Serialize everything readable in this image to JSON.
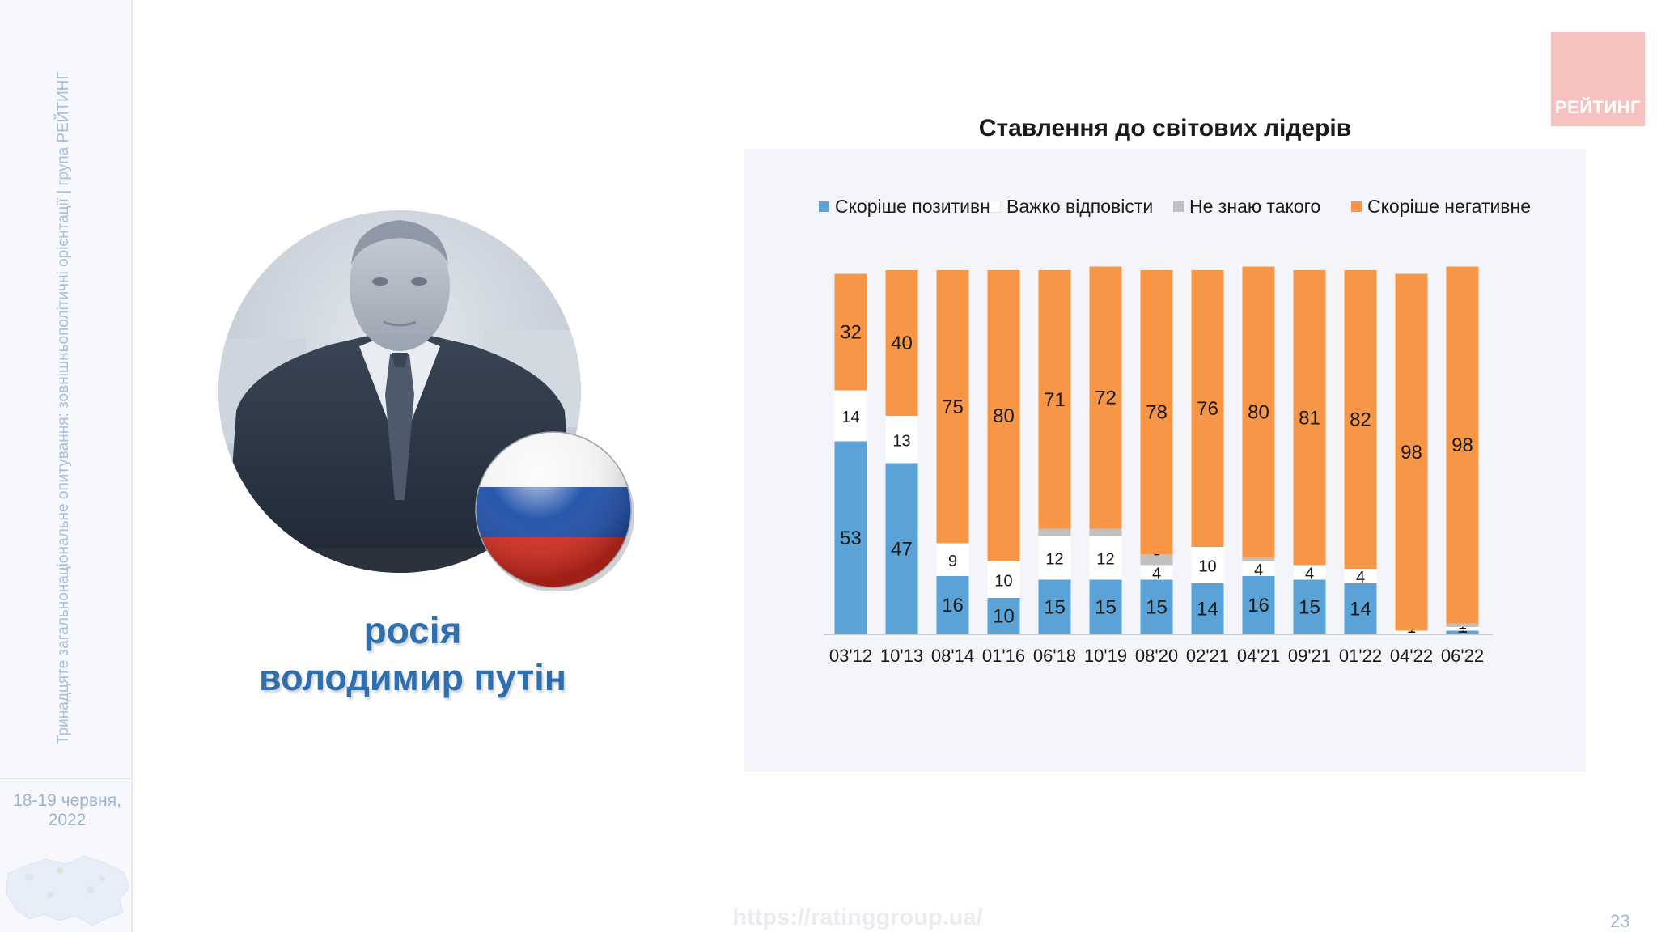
{
  "sidebar": {
    "vertical_text": "Тринадцяте загальнонаціональне опитування: зовнішньополітичні орієнтації | група РЕЙТИНГ",
    "date_line1": "18-19 червня,",
    "date_line2": "2022"
  },
  "logo": {
    "text": "РЕЙТИНГ"
  },
  "person": {
    "country": "росія",
    "name": "володимир путін"
  },
  "footer": {
    "url": "https://ratinggroup.ua/",
    "page_number": "23"
  },
  "colors": {
    "positive": "#5ba3d6",
    "hard": "#ffffff",
    "unknown": "#c0c0c0",
    "negative": "#f79646",
    "accent_text": "#2e6fb1",
    "logo": "#f5c2c0"
  },
  "chart_data": {
    "type": "bar",
    "stacked": true,
    "title": "Ставлення до світових лідерів",
    "legend_position": "top",
    "categories": [
      "03'12",
      "10'13",
      "08'14",
      "01'16",
      "06'18",
      "10'19",
      "08'20",
      "02'21",
      "04'21",
      "09'21",
      "01'22",
      "04'22",
      "06'22"
    ],
    "series": [
      {
        "name": "Скоріше позитивне",
        "color": "#5ba3d6",
        "values": [
          53,
          47,
          16,
          10,
          15,
          15,
          15,
          14,
          16,
          15,
          14,
          0,
          1
        ]
      },
      {
        "name": "Важко відповісти",
        "color": "#ffffff",
        "values": [
          14,
          13,
          9,
          10,
          12,
          12,
          4,
          10,
          4,
          4,
          4,
          1,
          1
        ]
      },
      {
        "name": "Не знаю такого",
        "color": "#c0c0c0",
        "values": [
          0,
          0,
          0,
          0,
          2,
          2,
          3,
          0,
          1,
          0,
          0,
          0,
          1
        ]
      },
      {
        "name": "Скоріше негативне",
        "color": "#f79646",
        "values": [
          32,
          40,
          75,
          80,
          71,
          72,
          78,
          76,
          80,
          81,
          82,
          98,
          98
        ]
      }
    ],
    "data_labels": [
      [
        "53",
        "14",
        "",
        "32"
      ],
      [
        "47",
        "13",
        "",
        "40"
      ],
      [
        "16",
        "9",
        "",
        "75"
      ],
      [
        "10",
        "10",
        "",
        "80"
      ],
      [
        "15",
        "12",
        "2",
        "71"
      ],
      [
        "15",
        "12",
        "2",
        "72"
      ],
      [
        "15",
        "4",
        "3",
        "78"
      ],
      [
        "14",
        "10",
        "",
        "76"
      ],
      [
        "16",
        "4",
        "1",
        "80"
      ],
      [
        "15",
        "4",
        "",
        "81"
      ],
      [
        "14",
        "4",
        "",
        "82"
      ],
      [
        "0",
        "1",
        "",
        "98"
      ],
      [
        "1",
        "1",
        "1",
        "98"
      ]
    ],
    "ylim": [
      0,
      100
    ]
  }
}
